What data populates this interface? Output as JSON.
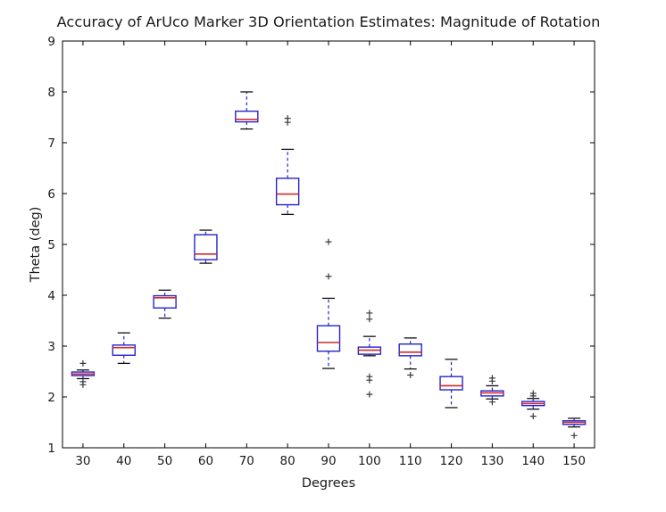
{
  "figure": {
    "title": "Accuracy of ArUco Marker 3D Orientation Estimates: Magnitude of Rotation",
    "xlabel": "Degrees",
    "ylabel": "Theta (deg)"
  },
  "chart_data": {
    "type": "boxplot",
    "title": "Accuracy of ArUco Marker 3D Orientation Estimates: Magnitude of Rotation",
    "xlabel": "Degrees",
    "ylabel": "Theta (deg)",
    "categories": [
      "30",
      "40",
      "50",
      "60",
      "70",
      "80",
      "90",
      "100",
      "110",
      "120",
      "130",
      "140",
      "150"
    ],
    "ylim": [
      1,
      9
    ],
    "yticks": [
      "1",
      "2",
      "3",
      "4",
      "5",
      "6",
      "7",
      "8",
      "9"
    ],
    "grid": false,
    "legend": null,
    "boxes": [
      {
        "category": "30",
        "whislo": 2.36,
        "q1": 2.42,
        "med": 2.45,
        "q3": 2.49,
        "whishi": 2.53,
        "fliers": [
          2.66,
          2.3,
          2.24
        ]
      },
      {
        "category": "40",
        "whislo": 2.66,
        "q1": 2.82,
        "med": 2.97,
        "q3": 3.02,
        "whishi": 3.26,
        "fliers": []
      },
      {
        "category": "50",
        "whislo": 3.55,
        "q1": 3.75,
        "med": 3.95,
        "q3": 3.99,
        "whishi": 4.1,
        "fliers": []
      },
      {
        "category": "60",
        "whislo": 4.63,
        "q1": 4.7,
        "med": 4.81,
        "q3": 5.19,
        "whishi": 5.28,
        "fliers": []
      },
      {
        "category": "70",
        "whislo": 7.27,
        "q1": 7.41,
        "med": 7.46,
        "q3": 7.62,
        "whishi": 8.0,
        "fliers": []
      },
      {
        "category": "80",
        "whislo": 5.59,
        "q1": 5.78,
        "med": 5.99,
        "q3": 6.3,
        "whishi": 6.87,
        "fliers": [
          7.48,
          7.4
        ]
      },
      {
        "category": "90",
        "whislo": 2.56,
        "q1": 2.9,
        "med": 3.07,
        "q3": 3.4,
        "whishi": 3.94,
        "fliers": [
          5.05,
          4.37
        ]
      },
      {
        "category": "100",
        "whislo": 2.81,
        "q1": 2.84,
        "med": 2.92,
        "q3": 2.98,
        "whishi": 3.19,
        "fliers": [
          3.65,
          3.53,
          2.4,
          2.33,
          2.05
        ]
      },
      {
        "category": "110",
        "whislo": 2.55,
        "q1": 2.81,
        "med": 2.88,
        "q3": 3.04,
        "whishi": 3.16,
        "fliers": [
          2.43
        ]
      },
      {
        "category": "120",
        "whislo": 1.79,
        "q1": 2.14,
        "med": 2.22,
        "q3": 2.4,
        "whishi": 2.74,
        "fliers": []
      },
      {
        "category": "130",
        "whislo": 1.96,
        "q1": 2.02,
        "med": 2.08,
        "q3": 2.12,
        "whishi": 2.22,
        "fliers": [
          2.37,
          2.31,
          1.9
        ]
      },
      {
        "category": "140",
        "whislo": 1.76,
        "q1": 1.83,
        "med": 1.87,
        "q3": 1.91,
        "whishi": 1.97,
        "fliers": [
          2.07,
          2.02,
          1.62
        ]
      },
      {
        "category": "150",
        "whislo": 1.41,
        "q1": 1.46,
        "med": 1.5,
        "q3": 1.53,
        "whishi": 1.58,
        "fliers": [
          1.24
        ]
      }
    ],
    "colors": {
      "box": "#2424cc",
      "median": "#d42a2a",
      "whisker": "#2424cc",
      "cap": "#111111",
      "flier": "#3a3a3a",
      "axis": "#000000",
      "text": "#1a1a1a",
      "background": "#ffffff"
    }
  }
}
